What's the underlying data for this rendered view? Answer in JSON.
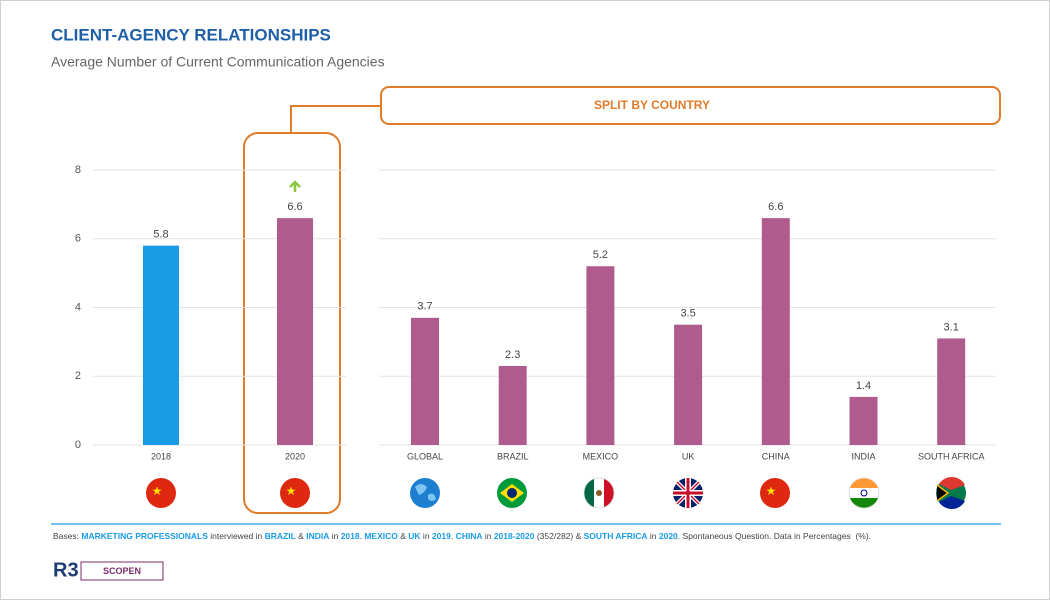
{
  "chart_data": {
    "type": "bar",
    "title": "CLIENT-AGENCY  RELATIONSHIPS",
    "subtitle": "Average Number of Current Communication  Agencies",
    "annotation": "SPLIT BY COUNTRY",
    "categories": [
      "2018",
      "2020",
      "GLOBAL",
      "BRAZIL",
      "MEXICO",
      "UK",
      "CHINA",
      "INDIA",
      "SOUTH AFRICA"
    ],
    "values": [
      5.8,
      6.6,
      3.7,
      2.3,
      5.2,
      3.5,
      6.6,
      1.4,
      3.1
    ],
    "colors": [
      "#1a9be6",
      "#b05b8e",
      "#b05b8e",
      "#b05b8e",
      "#b05b8e",
      "#b05b8e",
      "#b05b8e",
      "#b05b8e",
      "#b05b8e"
    ],
    "ylim": [
      0,
      8
    ],
    "yticks": [
      0,
      2,
      4,
      6,
      8
    ],
    "grid": true
  },
  "footnote": [
    "Bases: ",
    "MARKETING PROFESSIONALS",
    " interviewed in ",
    "BRAZIL",
    " & ",
    "INDIA",
    " in ",
    "2018",
    ". ",
    "MEXICO",
    " & ",
    "UK",
    " in ",
    "2019",
    ". ",
    "CHINA",
    " in ",
    "2018-2020",
    " (352/282) & ",
    "SOUTH AFRICA",
    " in ",
    "2020",
    ". Spontaneous Question. Data in Percentages  (%)."
  ],
  "logo": {
    "mark": "R3",
    "brand": "SCOPEN"
  }
}
